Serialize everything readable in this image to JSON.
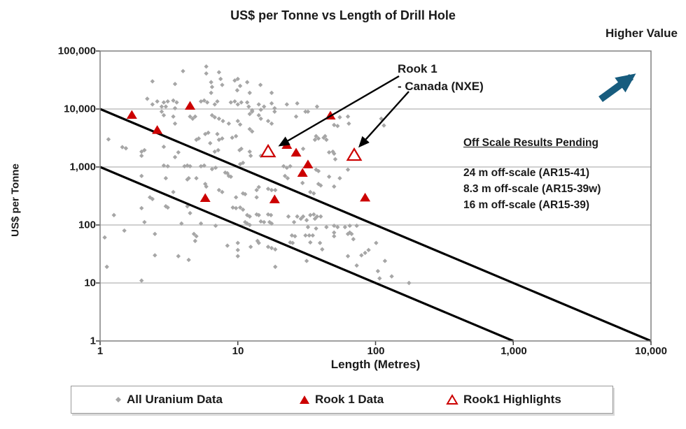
{
  "title": "US$ per Tonne vs Length of Drill Hole",
  "higher_value_label": "Higher Value",
  "axes": {
    "x_label": "Length (Metres)",
    "y_label": "US$ per Tonne",
    "x_ticks": [
      "1",
      "10",
      "100",
      "1,000",
      "10,000"
    ],
    "y_ticks": [
      "1",
      "10",
      "100",
      "1,000",
      "10,000",
      "100,000"
    ]
  },
  "annotations": {
    "rook1_line1": "Rook 1",
    "rook1_line2": "- Canada (NXE)",
    "offscale_title": "Off Scale Results Pending",
    "offscale_items": [
      "24 m off-scale (AR15-41)",
      "8.3 m off-scale (AR15-39w)",
      "16 m off-scale (AR15-39)"
    ]
  },
  "legend": {
    "items": [
      {
        "label": "All Uranium Data",
        "marker": "gray-diamond"
      },
      {
        "label": "Rook 1 Data",
        "marker": "red-filled-triangle"
      },
      {
        "label": "Rook1 Highlights",
        "marker": "red-open-triangle"
      }
    ]
  },
  "colors": {
    "accent_red": "#CC0000",
    "point_gray": "#A6A6A6",
    "grid_gray": "#C0C0C0",
    "border_gray": "#808080",
    "line_black": "#000000",
    "arrow_blue": "#175C7E",
    "text": "#1A1A1A"
  },
  "chart_data": {
    "type": "scatter",
    "title": "US$ per Tonne vs Length of Drill Hole",
    "xlabel": "Length (Metres)",
    "ylabel": "US$ per Tonne",
    "x_scale": "log",
    "y_scale": "log",
    "xlim": [
      1,
      10000
    ],
    "ylim": [
      1,
      100000
    ],
    "grid": "horizontal-decades",
    "legend_position": "bottom",
    "reference_lines": [
      {
        "name": "upper-value-line",
        "from": [
          1,
          10000
        ],
        "to": [
          10000,
          1
        ]
      },
      {
        "name": "lower-value-line",
        "from": [
          1,
          1000
        ],
        "to": [
          1000,
          1
        ]
      }
    ],
    "series": [
      {
        "name": "All Uranium Data",
        "marker": "diamond",
        "points": [
          [
            2.4,
            30000
          ],
          [
            3.5,
            27000
          ],
          [
            4,
            45000
          ],
          [
            5.9,
            54000
          ],
          [
            5.9,
            41000
          ],
          [
            7.3,
            43000
          ],
          [
            6.4,
            29000
          ],
          [
            6.5,
            24000
          ],
          [
            6.4,
            19000
          ],
          [
            7.5,
            33000
          ],
          [
            7.7,
            26000
          ],
          [
            9.5,
            31000
          ],
          [
            10,
            33000
          ],
          [
            10.4,
            25000
          ],
          [
            9.9,
            21000
          ],
          [
            11.7,
            29000
          ],
          [
            12.2,
            19000
          ],
          [
            14.6,
            26000
          ],
          [
            17.6,
            19000
          ],
          [
            2.2,
            15000
          ],
          [
            2.4,
            12000
          ],
          [
            2.6,
            13500
          ],
          [
            2.8,
            11000
          ],
          [
            2.9,
            13000
          ],
          [
            3,
            11000
          ],
          [
            3.1,
            13500
          ],
          [
            3.4,
            14000
          ],
          [
            3.6,
            13000
          ],
          [
            3.5,
            10300
          ],
          [
            5.4,
            13500
          ],
          [
            5.7,
            14000
          ],
          [
            6,
            13000
          ],
          [
            6.8,
            12000
          ],
          [
            7.1,
            13500
          ],
          [
            8.9,
            13000
          ],
          [
            9.5,
            13500
          ],
          [
            10,
            12000
          ],
          [
            10.6,
            13000
          ],
          [
            11.7,
            13000
          ],
          [
            12,
            11000
          ],
          [
            12.7,
            9500
          ],
          [
            14.2,
            12000
          ],
          [
            14.7,
            9700
          ],
          [
            15.5,
            11000
          ],
          [
            17.6,
            12500
          ],
          [
            18.5,
            10300
          ],
          [
            2.8,
            9000
          ],
          [
            2.9,
            7800
          ],
          [
            3.4,
            7400
          ],
          [
            3.5,
            5600
          ],
          [
            4.5,
            7400
          ],
          [
            4.7,
            6800
          ],
          [
            4.9,
            7400
          ],
          [
            6.5,
            7800
          ],
          [
            6.8,
            7200
          ],
          [
            7.3,
            6800
          ],
          [
            7.8,
            6200
          ],
          [
            8.6,
            5600
          ],
          [
            10,
            6200
          ],
          [
            10.4,
            5400
          ],
          [
            12.2,
            8200
          ],
          [
            12.7,
            9000
          ],
          [
            14.2,
            7800
          ],
          [
            14.7,
            6800
          ],
          [
            16.6,
            6200
          ],
          [
            17.6,
            5600
          ],
          [
            18.5,
            9000
          ],
          [
            22.7,
            12000
          ],
          [
            27,
            12500
          ],
          [
            26.5,
            7400
          ],
          [
            31,
            9000
          ],
          [
            32.3,
            9000
          ],
          [
            37.6,
            11000
          ],
          [
            55,
            7200
          ],
          [
            63,
            7400
          ],
          [
            64,
            5600
          ],
          [
            50,
            5300
          ],
          [
            53,
            5100
          ],
          [
            110,
            6800
          ],
          [
            115,
            5200
          ],
          [
            1.15,
            3000
          ],
          [
            1.45,
            2200
          ],
          [
            1.54,
            2100
          ],
          [
            2,
            1840
          ],
          [
            2.1,
            1950
          ],
          [
            2,
            1560
          ],
          [
            2.9,
            2230
          ],
          [
            3.5,
            1480
          ],
          [
            3.7,
            1790
          ],
          [
            5,
            2950
          ],
          [
            5.2,
            3100
          ],
          [
            5.8,
            3700
          ],
          [
            6.1,
            3900
          ],
          [
            7.1,
            3700
          ],
          [
            7.3,
            2950
          ],
          [
            7.7,
            3100
          ],
          [
            6.3,
            2570
          ],
          [
            6.8,
            1840
          ],
          [
            7.2,
            1950
          ],
          [
            9.1,
            3200
          ],
          [
            9.7,
            3400
          ],
          [
            10.3,
            1950
          ],
          [
            10.6,
            2060
          ],
          [
            12.2,
            4500
          ],
          [
            12.7,
            4100
          ],
          [
            12.2,
            1840
          ],
          [
            12.4,
            1560
          ],
          [
            14.7,
            1560
          ],
          [
            15.5,
            1600
          ],
          [
            2.9,
            1060
          ],
          [
            3.1,
            1030
          ],
          [
            4.1,
            1030
          ],
          [
            4.3,
            1060
          ],
          [
            4.5,
            1030
          ],
          [
            5.4,
            1030
          ],
          [
            5.7,
            1060
          ],
          [
            6.5,
            920
          ],
          [
            6.9,
            970
          ],
          [
            8.1,
            800
          ],
          [
            8.4,
            780
          ],
          [
            10.4,
            1120
          ],
          [
            10.9,
            1180
          ],
          [
            2,
            700
          ],
          [
            3,
            640
          ],
          [
            4.3,
            610
          ],
          [
            4.4,
            640
          ],
          [
            5,
            640
          ],
          [
            5.8,
            510
          ],
          [
            5.9,
            460
          ],
          [
            7.3,
            400
          ],
          [
            7.7,
            370
          ],
          [
            8.6,
            700
          ],
          [
            8.9,
            680
          ],
          [
            10.9,
            350
          ],
          [
            11.3,
            340
          ],
          [
            13.7,
            400
          ],
          [
            14.2,
            450
          ],
          [
            16.6,
            420
          ],
          [
            17.6,
            400
          ],
          [
            2.3,
            300
          ],
          [
            2.4,
            280
          ],
          [
            3.4,
            370
          ],
          [
            9.7,
            300
          ],
          [
            13.7,
            300
          ],
          [
            18.7,
            400
          ],
          [
            29.8,
            2060
          ],
          [
            37,
            3400
          ],
          [
            38.5,
            3100
          ],
          [
            36.3,
            2950
          ],
          [
            42,
            3200
          ],
          [
            43,
            3400
          ],
          [
            44,
            2950
          ],
          [
            46,
            1790
          ],
          [
            49,
            1840
          ],
          [
            50,
            1700
          ],
          [
            51,
            1360
          ],
          [
            21.5,
            1030
          ],
          [
            22.7,
            970
          ],
          [
            24,
            1030
          ],
          [
            37,
            900
          ],
          [
            38.5,
            850
          ],
          [
            22,
            700
          ],
          [
            23,
            640
          ],
          [
            29.5,
            530
          ],
          [
            33.6,
            370
          ],
          [
            35.6,
            350
          ],
          [
            38.5,
            510
          ],
          [
            40,
            480
          ],
          [
            46,
            680
          ],
          [
            50,
            460
          ],
          [
            63,
            900
          ],
          [
            55,
            640
          ],
          [
            1.26,
            148
          ],
          [
            1.5,
            80
          ],
          [
            2,
            195
          ],
          [
            2.1,
            112
          ],
          [
            2.5,
            70
          ],
          [
            2.5,
            30
          ],
          [
            1.12,
            19
          ],
          [
            2,
            11
          ],
          [
            1.08,
            61
          ],
          [
            3,
            210
          ],
          [
            3.1,
            200
          ],
          [
            3.7,
            29
          ],
          [
            4.4,
            25
          ],
          [
            4.3,
            210
          ],
          [
            4.5,
            160
          ],
          [
            4.8,
            70
          ],
          [
            5,
            64
          ],
          [
            4.9,
            53
          ],
          [
            3.9,
            106
          ],
          [
            5.4,
            106
          ],
          [
            6.9,
            97
          ],
          [
            8.4,
            44
          ],
          [
            10,
            49
          ],
          [
            10,
            37
          ],
          [
            10,
            29
          ],
          [
            9.2,
            200
          ],
          [
            9.7,
            195
          ],
          [
            10.4,
            200
          ],
          [
            10.9,
            184
          ],
          [
            11.7,
            148
          ],
          [
            12.2,
            140
          ],
          [
            13.7,
            152
          ],
          [
            14.2,
            148
          ],
          [
            11.3,
            112
          ],
          [
            11.7,
            106
          ],
          [
            12.2,
            100
          ],
          [
            14.7,
            115
          ],
          [
            15.5,
            112
          ],
          [
            16.6,
            152
          ],
          [
            17.4,
            148
          ],
          [
            12.4,
            42
          ],
          [
            13.9,
            53
          ],
          [
            14.2,
            49
          ],
          [
            16.6,
            42
          ],
          [
            17.6,
            40
          ],
          [
            18.7,
            38
          ],
          [
            18.7,
            19
          ],
          [
            17,
            112
          ],
          [
            17.6,
            106
          ],
          [
            23.3,
            140
          ],
          [
            25.6,
            112
          ],
          [
            27,
            140
          ],
          [
            28.7,
            128
          ],
          [
            29.8,
            140
          ],
          [
            31.6,
            121
          ],
          [
            33.6,
            148
          ],
          [
            35.6,
            152
          ],
          [
            36.3,
            128
          ],
          [
            37.6,
            140
          ],
          [
            40,
            140
          ],
          [
            32.3,
            92
          ],
          [
            37,
            87
          ],
          [
            44,
            92
          ],
          [
            50,
            97
          ],
          [
            53,
            92
          ],
          [
            60,
            92
          ],
          [
            65,
            97
          ],
          [
            73,
            97
          ],
          [
            24.7,
            66
          ],
          [
            26,
            64
          ],
          [
            24,
            50
          ],
          [
            25,
            49
          ],
          [
            31,
            66
          ],
          [
            33,
            66
          ],
          [
            35,
            66
          ],
          [
            33.6,
            50
          ],
          [
            50,
            74
          ],
          [
            50,
            64
          ],
          [
            63,
            70
          ],
          [
            65,
            74
          ],
          [
            67,
            70
          ],
          [
            69,
            57
          ],
          [
            39.5,
            49
          ],
          [
            41,
            38
          ],
          [
            31.6,
            24
          ],
          [
            63,
            29
          ],
          [
            79,
            30
          ],
          [
            84,
            33
          ],
          [
            73,
            20
          ],
          [
            101,
            49
          ],
          [
            89,
            37
          ],
          [
            104,
            16
          ],
          [
            107,
            12
          ],
          [
            117,
            24
          ],
          [
            131,
            13
          ],
          [
            175,
            10
          ]
        ]
      },
      {
        "name": "Rook 1 Data",
        "marker": "filled-triangle",
        "points": [
          [
            1.7,
            8000
          ],
          [
            2.6,
            4400
          ],
          [
            4.5,
            11500
          ],
          [
            47,
            7800
          ],
          [
            22.7,
            2430
          ],
          [
            26.5,
            1790
          ],
          [
            32.3,
            1120
          ],
          [
            29.5,
            800
          ],
          [
            5.8,
            295
          ],
          [
            18.5,
            280
          ],
          [
            84,
            300
          ]
        ]
      },
      {
        "name": "Rook1 Highlights",
        "marker": "open-triangle",
        "points": [
          [
            16.6,
            1840
          ],
          [
            70,
            1600
          ]
        ]
      }
    ]
  }
}
